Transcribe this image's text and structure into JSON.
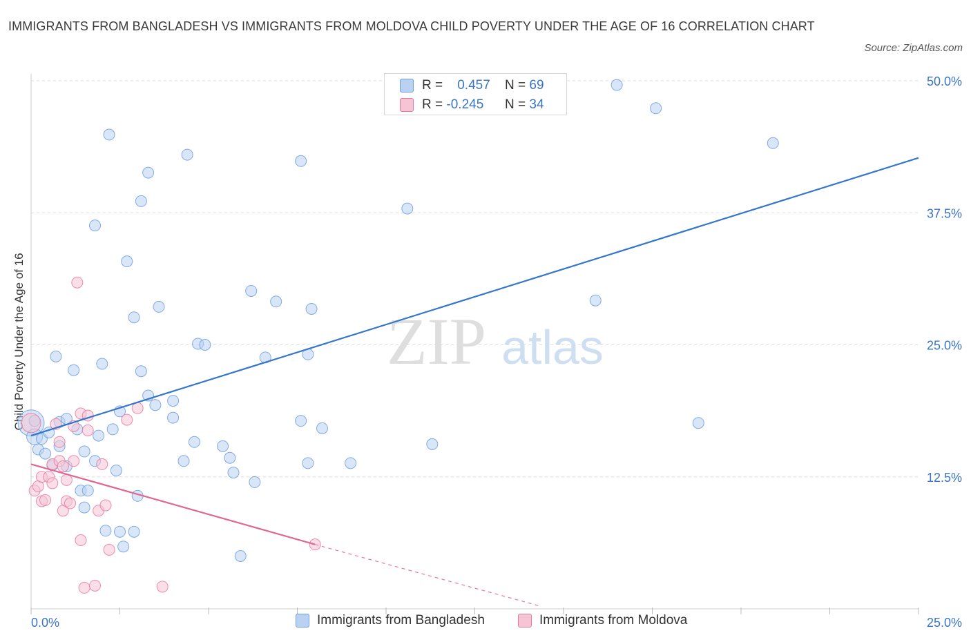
{
  "title": "IMMIGRANTS FROM BANGLADESH VS IMMIGRANTS FROM MOLDOVA CHILD POVERTY UNDER THE AGE OF 16 CORRELATION CHART",
  "source": "Source: ZipAtlas.com",
  "watermark": {
    "zip": "ZIP",
    "atlas": "atlas"
  },
  "legend": {
    "r_label": "R =",
    "n_label": "N =",
    "entries": [
      {
        "r": "0.457",
        "n": "69"
      },
      {
        "r": "-0.245",
        "n": "34"
      }
    ]
  },
  "chart_data": {
    "type": "scatter",
    "title": "IMMIGRANTS FROM BANGLADESH VS IMMIGRANTS FROM MOLDOVA CHILD POVERTY UNDER THE AGE OF 16 CORRELATION CHART",
    "xlabel": "",
    "ylabel": "Child Poverty Under the Age of 16",
    "xlim": [
      0,
      25
    ],
    "ylim": [
      0,
      50
    ],
    "x_tick_labels": [
      "0.0%",
      "25.0%"
    ],
    "y_ticks": [
      12.5,
      25.0,
      37.5,
      50.0
    ],
    "y_tick_labels": [
      "12.5%",
      "25.0%",
      "37.5%",
      "50.0%"
    ],
    "grid": true,
    "series": [
      {
        "name": "Immigrants from Bangladesh",
        "color": "#6c9ee0",
        "fill": "#b9d2f2",
        "r": 0.457,
        "n": 69,
        "trend": {
          "x": [
            0.0,
            25.0
          ],
          "y": [
            16.4,
            42.7
          ]
        },
        "points": [
          {
            "x": 0.0,
            "y": 17.6,
            "s": 3
          },
          {
            "x": 0.1,
            "y": 16.3,
            "s": 1.5
          },
          {
            "x": 0.2,
            "y": 15.1,
            "s": 1
          },
          {
            "x": 0.3,
            "y": 16.1,
            "s": 1
          },
          {
            "x": 0.4,
            "y": 14.7,
            "s": 1
          },
          {
            "x": 0.5,
            "y": 16.7,
            "s": 1
          },
          {
            "x": 0.6,
            "y": 13.6,
            "s": 1
          },
          {
            "x": 0.7,
            "y": 23.9,
            "s": 1
          },
          {
            "x": 0.8,
            "y": 17.7,
            "s": 1
          },
          {
            "x": 0.8,
            "y": 15.4,
            "s": 1
          },
          {
            "x": 1.0,
            "y": 18.0,
            "s": 1
          },
          {
            "x": 1.0,
            "y": 13.5,
            "s": 1
          },
          {
            "x": 1.2,
            "y": 22.6,
            "s": 1
          },
          {
            "x": 1.3,
            "y": 17.0,
            "s": 1
          },
          {
            "x": 1.4,
            "y": 11.2,
            "s": 1
          },
          {
            "x": 1.5,
            "y": 9.6,
            "s": 1
          },
          {
            "x": 1.5,
            "y": 14.9,
            "s": 1
          },
          {
            "x": 1.6,
            "y": 11.2,
            "s": 1
          },
          {
            "x": 1.8,
            "y": 36.3,
            "s": 1
          },
          {
            "x": 1.8,
            "y": 14.0,
            "s": 1
          },
          {
            "x": 1.9,
            "y": 16.4,
            "s": 1
          },
          {
            "x": 2.0,
            "y": 23.2,
            "s": 1
          },
          {
            "x": 2.1,
            "y": 7.4,
            "s": 1
          },
          {
            "x": 2.2,
            "y": 44.9,
            "s": 1
          },
          {
            "x": 2.3,
            "y": 17.0,
            "s": 1
          },
          {
            "x": 2.4,
            "y": 13.1,
            "s": 1
          },
          {
            "x": 2.5,
            "y": 7.3,
            "s": 1
          },
          {
            "x": 2.5,
            "y": 18.7,
            "s": 1
          },
          {
            "x": 2.6,
            "y": 5.9,
            "s": 1
          },
          {
            "x": 2.7,
            "y": 32.9,
            "s": 1
          },
          {
            "x": 2.9,
            "y": 27.6,
            "s": 1
          },
          {
            "x": 2.9,
            "y": 7.3,
            "s": 1
          },
          {
            "x": 3.0,
            "y": 10.7,
            "s": 1
          },
          {
            "x": 3.1,
            "y": 38.6,
            "s": 1
          },
          {
            "x": 3.1,
            "y": 22.5,
            "s": 1
          },
          {
            "x": 3.3,
            "y": 20.2,
            "s": 1
          },
          {
            "x": 3.3,
            "y": 41.3,
            "s": 1
          },
          {
            "x": 3.5,
            "y": 19.3,
            "s": 1
          },
          {
            "x": 3.6,
            "y": 28.6,
            "s": 1
          },
          {
            "x": 4.0,
            "y": 19.7,
            "s": 1
          },
          {
            "x": 4.0,
            "y": 18.1,
            "s": 1
          },
          {
            "x": 4.3,
            "y": 14.0,
            "s": 1
          },
          {
            "x": 4.4,
            "y": 43.0,
            "s": 1
          },
          {
            "x": 4.6,
            "y": 15.8,
            "s": 1
          },
          {
            "x": 4.7,
            "y": 25.1,
            "s": 1
          },
          {
            "x": 4.9,
            "y": 25.0,
            "s": 1
          },
          {
            "x": 5.4,
            "y": 15.4,
            "s": 1
          },
          {
            "x": 5.6,
            "y": 14.3,
            "s": 1
          },
          {
            "x": 5.7,
            "y": 12.9,
            "s": 1
          },
          {
            "x": 5.9,
            "y": 5.0,
            "s": 1
          },
          {
            "x": 6.2,
            "y": 30.1,
            "s": 1
          },
          {
            "x": 6.3,
            "y": 12.0,
            "s": 1
          },
          {
            "x": 6.6,
            "y": 23.8,
            "s": 1
          },
          {
            "x": 6.9,
            "y": 29.1,
            "s": 1
          },
          {
            "x": 7.6,
            "y": 42.4,
            "s": 1
          },
          {
            "x": 7.6,
            "y": 17.8,
            "s": 1
          },
          {
            "x": 7.8,
            "y": 24.1,
            "s": 1
          },
          {
            "x": 7.8,
            "y": 13.8,
            "s": 1
          },
          {
            "x": 7.9,
            "y": 28.4,
            "s": 1
          },
          {
            "x": 8.2,
            "y": 17.1,
            "s": 1
          },
          {
            "x": 9.0,
            "y": 13.8,
            "s": 1
          },
          {
            "x": 10.6,
            "y": 37.9,
            "s": 1
          },
          {
            "x": 11.3,
            "y": 15.6,
            "s": 1
          },
          {
            "x": 15.9,
            "y": 29.2,
            "s": 1
          },
          {
            "x": 16.5,
            "y": 49.6,
            "s": 1
          },
          {
            "x": 17.6,
            "y": 47.4,
            "s": 1
          },
          {
            "x": 18.8,
            "y": 17.6,
            "s": 1
          },
          {
            "x": 20.9,
            "y": 44.1,
            "s": 1
          },
          {
            "x": 0.1,
            "y": 17.8,
            "s": 1
          }
        ]
      },
      {
        "name": "Immigrants from Moldova",
        "color": "#e8799e",
        "fill": "#f6c5d5",
        "r": -0.245,
        "n": 34,
        "trend": {
          "x": [
            0.0,
            8.0
          ],
          "y": [
            13.7,
            6.1
          ]
        },
        "trend_extended": {
          "x": [
            8.0,
            14.3
          ],
          "y": [
            6.1,
            0.3
          ]
        },
        "points": [
          {
            "x": 0.0,
            "y": 17.6,
            "s": 2
          },
          {
            "x": 0.1,
            "y": 11.2,
            "s": 1
          },
          {
            "x": 0.2,
            "y": 11.6,
            "s": 1
          },
          {
            "x": 0.3,
            "y": 12.5,
            "s": 1
          },
          {
            "x": 0.3,
            "y": 10.2,
            "s": 1
          },
          {
            "x": 0.4,
            "y": 10.3,
            "s": 1
          },
          {
            "x": 0.5,
            "y": 12.5,
            "s": 1
          },
          {
            "x": 0.6,
            "y": 13.7,
            "s": 1
          },
          {
            "x": 0.6,
            "y": 11.9,
            "s": 1
          },
          {
            "x": 0.7,
            "y": 17.5,
            "s": 1
          },
          {
            "x": 0.8,
            "y": 15.8,
            "s": 1
          },
          {
            "x": 0.8,
            "y": 14.0,
            "s": 1
          },
          {
            "x": 0.9,
            "y": 9.3,
            "s": 1
          },
          {
            "x": 1.0,
            "y": 10.2,
            "s": 1
          },
          {
            "x": 1.0,
            "y": 12.2,
            "s": 1
          },
          {
            "x": 1.1,
            "y": 10.0,
            "s": 1
          },
          {
            "x": 1.2,
            "y": 17.3,
            "s": 1
          },
          {
            "x": 1.2,
            "y": 14.0,
            "s": 1
          },
          {
            "x": 1.3,
            "y": 30.9,
            "s": 1
          },
          {
            "x": 1.4,
            "y": 6.5,
            "s": 1
          },
          {
            "x": 1.4,
            "y": 18.5,
            "s": 1
          },
          {
            "x": 1.5,
            "y": 2.0,
            "s": 1
          },
          {
            "x": 1.6,
            "y": 16.9,
            "s": 1
          },
          {
            "x": 1.6,
            "y": 18.3,
            "s": 1
          },
          {
            "x": 1.8,
            "y": 2.2,
            "s": 1
          },
          {
            "x": 1.9,
            "y": 9.3,
            "s": 1
          },
          {
            "x": 2.0,
            "y": 13.7,
            "s": 1
          },
          {
            "x": 2.1,
            "y": 9.8,
            "s": 1
          },
          {
            "x": 2.2,
            "y": 5.6,
            "s": 1
          },
          {
            "x": 2.7,
            "y": 17.9,
            "s": 1
          },
          {
            "x": 3.0,
            "y": 19.0,
            "s": 1
          },
          {
            "x": 3.7,
            "y": 2.1,
            "s": 1
          },
          {
            "x": 8.0,
            "y": 6.1,
            "s": 1
          },
          {
            "x": 0.9,
            "y": 13.5,
            "s": 1
          }
        ]
      }
    ]
  }
}
